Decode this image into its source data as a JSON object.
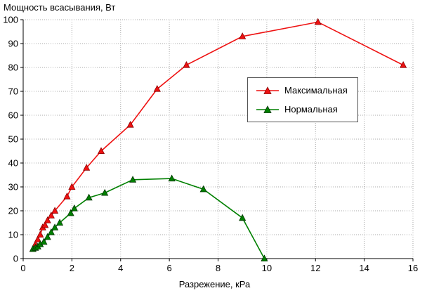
{
  "chart_data": {
    "type": "line",
    "title": "Мощность всасывания, Вт",
    "xlabel": "Разрежение, кРа",
    "ylabel": "",
    "xlim": [
      0,
      16
    ],
    "ylim": [
      0,
      100
    ],
    "xticks": [
      0,
      2,
      4,
      6,
      8,
      10,
      12,
      14,
      16
    ],
    "yticks": [
      0,
      10,
      20,
      30,
      40,
      50,
      60,
      70,
      80,
      90,
      100
    ],
    "grid": true,
    "grid_color": "#aaaaaa",
    "legend_position": "upper-right-inside",
    "series": [
      {
        "name": "Максимальная",
        "color": "#ee1111",
        "edge": "#880000",
        "marker": "triangle",
        "x": [
          0.4,
          0.5,
          0.6,
          0.7,
          0.8,
          0.9,
          1.0,
          1.15,
          1.3,
          1.8,
          2.0,
          2.6,
          3.2,
          4.4,
          5.5,
          6.7,
          9.0,
          12.1,
          15.6
        ],
        "y": [
          4,
          6,
          8,
          10,
          13,
          14,
          16,
          18,
          20,
          26,
          30,
          38,
          45,
          56,
          71,
          81,
          93,
          99,
          81
        ]
      },
      {
        "name": "Нормальная",
        "color": "#008000",
        "edge": "#003300",
        "marker": "triangle",
        "x": [
          0.4,
          0.5,
          0.6,
          0.7,
          0.85,
          1.0,
          1.15,
          1.3,
          1.5,
          1.95,
          2.1,
          2.7,
          3.35,
          4.5,
          6.1,
          7.4,
          9.0,
          9.9
        ],
        "y": [
          4,
          4.5,
          5,
          6,
          7,
          9,
          11,
          13,
          15,
          19,
          21,
          25.5,
          27.5,
          33,
          33.5,
          29,
          17,
          0
        ]
      }
    ]
  }
}
